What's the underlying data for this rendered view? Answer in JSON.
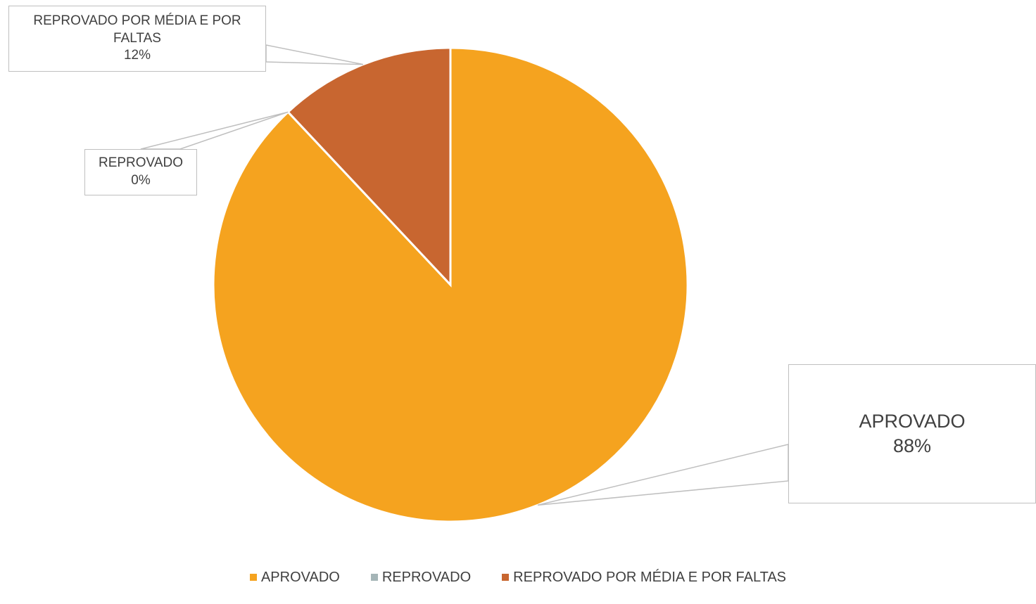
{
  "chart_data": {
    "type": "pie",
    "categories": [
      "APROVADO",
      "REPROVADO",
      "REPROVADO POR MÉDIA E POR FALTAS"
    ],
    "values": [
      88,
      0,
      12
    ],
    "labels": [
      "88%",
      "0%",
      "12%"
    ],
    "colors": [
      "#f5a31f",
      "#a5b5b7",
      "#c86630"
    ],
    "legend_position": "bottom",
    "data_labels": "callout"
  }
}
